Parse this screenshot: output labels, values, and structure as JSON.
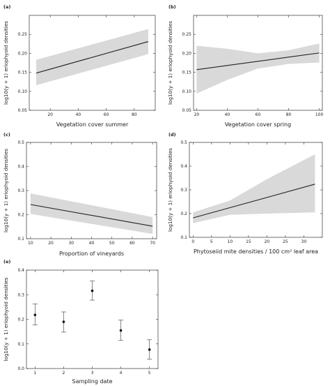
{
  "chart_data": [
    {
      "id": "a",
      "panel_label": "(a)",
      "type": "line",
      "xlabel": "Vegetation cover summer",
      "ylabel": "log10(y + 1) eriophyoid densities",
      "xlim": [
        5,
        95
      ],
      "ylim": [
        0.05,
        0.3
      ],
      "xticks": [
        20,
        40,
        60,
        80
      ],
      "yticks": [
        0.05,
        0.1,
        0.15,
        0.2,
        0.25
      ],
      "series": [
        {
          "x": [
            10,
            90
          ],
          "y": [
            0.148,
            0.231
          ],
          "ci_lower": [
            0.116,
            0.198
          ],
          "ci_upper": [
            0.183,
            0.264
          ]
        }
      ]
    },
    {
      "id": "b",
      "panel_label": "(b)",
      "type": "line",
      "xlabel": "Vegetation cover spring",
      "ylabel": "log10(y + 1) eriophyoid densities",
      "xlim": [
        18,
        102
      ],
      "ylim": [
        0.05,
        0.3
      ],
      "xticks": [
        20,
        40,
        60,
        80,
        100
      ],
      "yticks": [
        0.05,
        0.1,
        0.15,
        0.2,
        0.25
      ],
      "series": [
        {
          "x": [
            20,
            40,
            60,
            80,
            100
          ],
          "y": [
            0.157,
            0.168,
            0.179,
            0.19,
            0.201
          ],
          "ci_lower": [
            0.094,
            0.13,
            0.16,
            0.172,
            0.176
          ],
          "ci_upper": [
            0.22,
            0.212,
            0.2,
            0.208,
            0.226
          ]
        }
      ]
    },
    {
      "id": "c",
      "panel_label": "(c)",
      "type": "line",
      "xlabel": "Proportion of vineyards",
      "ylabel": "log10(y + 1) eriophyoid densities",
      "xlim": [
        8,
        72
      ],
      "ylim": [
        0.1,
        0.5
      ],
      "xticks": [
        10,
        20,
        30,
        40,
        50,
        60,
        70
      ],
      "yticks": [
        0.1,
        0.2,
        0.3,
        0.4,
        0.5
      ],
      "series": [
        {
          "x": [
            10,
            70
          ],
          "y": [
            0.242,
            0.152
          ],
          "ci_lower": [
            0.203,
            0.12
          ],
          "ci_upper": [
            0.288,
            0.19
          ]
        }
      ]
    },
    {
      "id": "d",
      "panel_label": "(d)",
      "type": "line",
      "xlabel": "Phytoseiid mite densities  / 100 cm² leaf area",
      "ylabel": "log10(y + 1) eriophyoid densities",
      "xlim": [
        -1,
        35
      ],
      "ylim": [
        0.1,
        0.5
      ],
      "xticks": [
        0,
        5,
        10,
        15,
        20,
        25,
        30
      ],
      "yticks": [
        0.1,
        0.2,
        0.3,
        0.4,
        0.5
      ],
      "series": [
        {
          "x": [
            0,
            10,
            20,
            33
          ],
          "y": [
            0.182,
            0.225,
            0.268,
            0.324
          ],
          "ci_lower": [
            0.16,
            0.195,
            0.2,
            0.205
          ],
          "ci_upper": [
            0.205,
            0.255,
            0.345,
            0.45
          ]
        }
      ]
    },
    {
      "id": "e",
      "panel_label": "(e)",
      "type": "scatter",
      "xlabel": "Sampling date",
      "ylabel": "log10(y + 1) eriophyoid densities",
      "xlim": [
        0.7,
        5.3
      ],
      "ylim": [
        0.0,
        0.4
      ],
      "xticks": [
        1,
        2,
        3,
        4,
        5
      ],
      "yticks": [
        0.0,
        0.1,
        0.2,
        0.3,
        0.4
      ],
      "series": [
        {
          "x": [
            1,
            2,
            3,
            4,
            5
          ],
          "y": [
            0.218,
            0.19,
            0.316,
            0.155,
            0.077
          ],
          "err_lower": [
            0.177,
            0.148,
            0.278,
            0.115,
            0.038
          ],
          "err_upper": [
            0.263,
            0.23,
            0.356,
            0.197,
            0.117
          ]
        }
      ]
    }
  ]
}
